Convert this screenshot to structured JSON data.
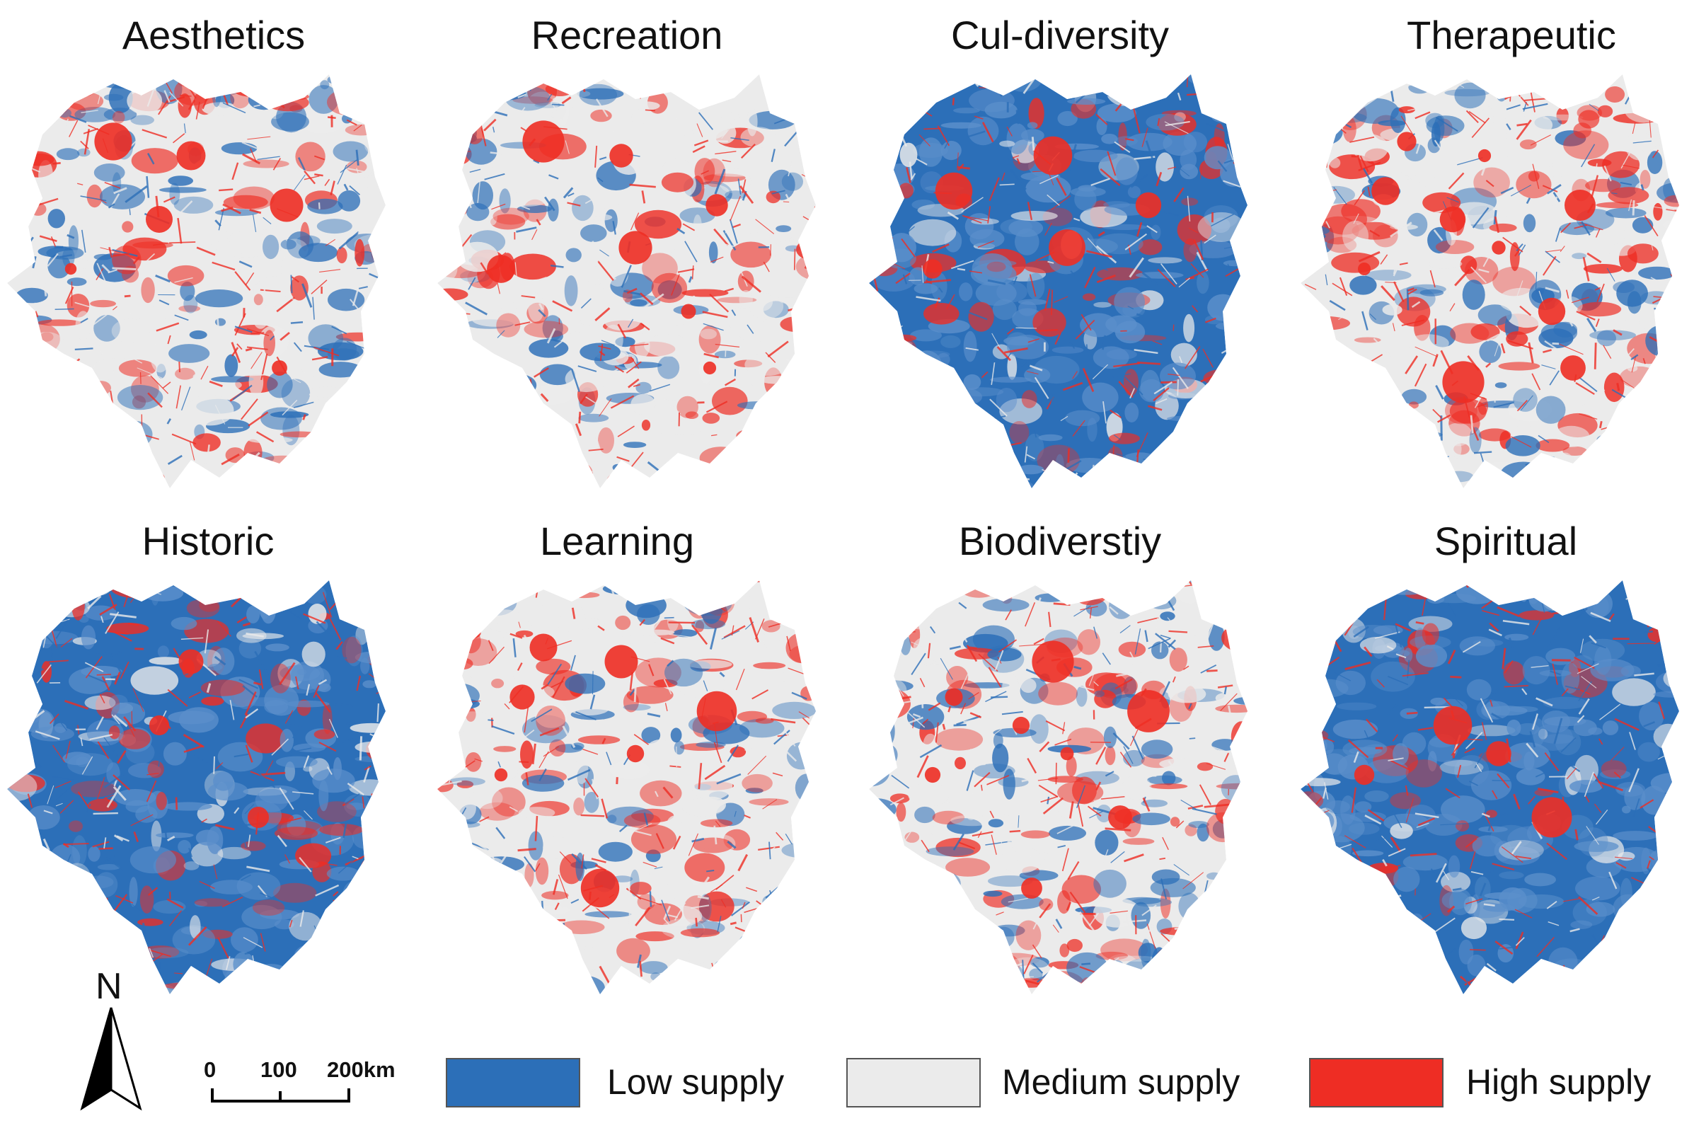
{
  "maps": [
    {
      "title": "Aesthetics",
      "scheme": "mixed"
    },
    {
      "title": "Recreation",
      "scheme": "mixed_light"
    },
    {
      "title": "Cul-diversity",
      "scheme": "blue"
    },
    {
      "title": "Therapeutic",
      "scheme": "mixed_red"
    },
    {
      "title": "Historic",
      "scheme": "blue_mixed"
    },
    {
      "title": "Learning",
      "scheme": "mixed_light"
    },
    {
      "title": "Biodiverstiy",
      "scheme": "mixed"
    },
    {
      "title": "Spiritual",
      "scheme": "deep_blue"
    }
  ],
  "legend": {
    "items": [
      {
        "label": "Low supply",
        "color": "#2c6fb8"
      },
      {
        "label": "Medium supply",
        "color": "#ebebeb"
      },
      {
        "label": "High supply",
        "color": "#ee2d24"
      }
    ]
  },
  "scale_bar": {
    "ticks": [
      "0",
      "100",
      "200km"
    ]
  },
  "north_arrow": {
    "label": "N",
    "icon": "north-arrow-icon"
  }
}
